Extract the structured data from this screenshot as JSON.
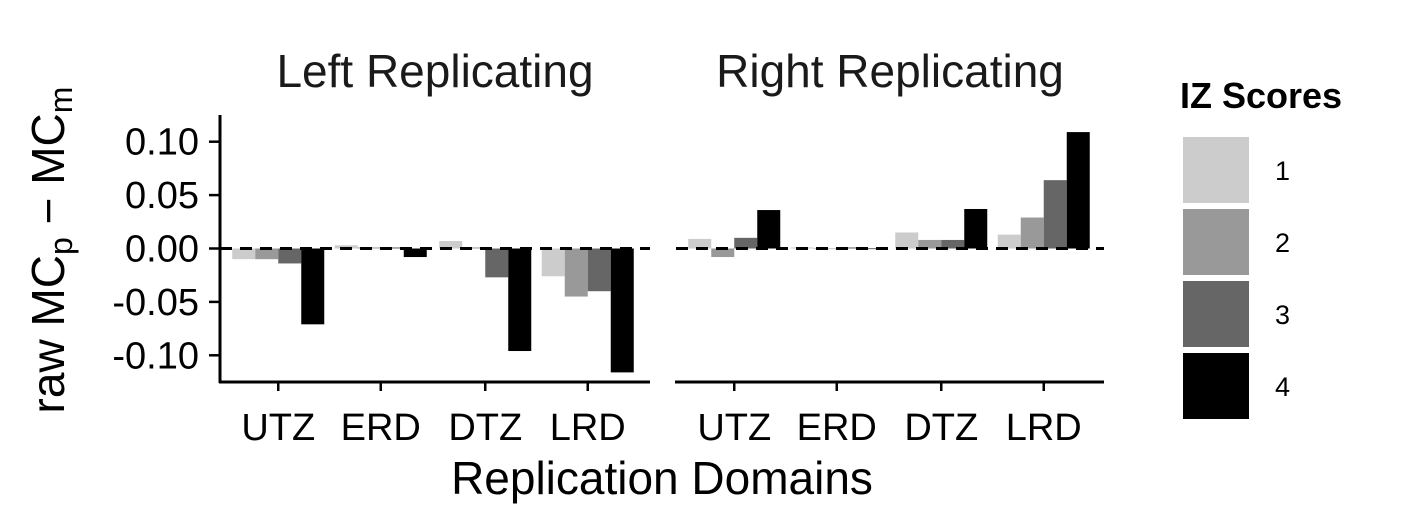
{
  "chart_data": {
    "type": "bar",
    "xlabel": "Replication Domains",
    "ylabel": {
      "main": "raw MC",
      "sub1": "p",
      "minus": " − MC",
      "sub2": "m"
    },
    "ylim": [
      -0.125,
      0.125
    ],
    "yticks": [
      {
        "value": 0.1,
        "label": "0.10"
      },
      {
        "value": 0.05,
        "label": "0.05"
      },
      {
        "value": 0.0,
        "label": "0.00"
      },
      {
        "value": -0.05,
        "label": "-0.05"
      },
      {
        "value": -0.1,
        "label": "-0.10"
      }
    ],
    "categories": [
      "UTZ",
      "ERD",
      "DTZ",
      "LRD"
    ],
    "legend": {
      "title": "IZ Scores",
      "placement": "right",
      "entries": [
        {
          "label": "1",
          "color": "#cccccc"
        },
        {
          "label": "2",
          "color": "#999999"
        },
        {
          "label": "3",
          "color": "#666666"
        },
        {
          "label": "4",
          "color": "#000000"
        }
      ]
    },
    "facets": [
      {
        "title": "Left Replicating",
        "values": [
          [
            -0.01,
            -0.01,
            -0.014,
            -0.071
          ],
          [
            0.003,
            0.001,
            0.001,
            -0.008
          ],
          [
            0.007,
            0.001,
            -0.027,
            -0.096
          ],
          [
            -0.026,
            -0.045,
            -0.04,
            -0.116
          ]
        ]
      },
      {
        "title": "Right Replicating",
        "values": [
          [
            0.009,
            -0.008,
            0.01,
            0.036
          ],
          [
            0.001,
            0.0,
            0.001,
            0.0
          ],
          [
            0.015,
            0.008,
            0.008,
            0.037
          ],
          [
            0.013,
            0.029,
            0.064,
            0.109
          ]
        ]
      }
    ]
  }
}
